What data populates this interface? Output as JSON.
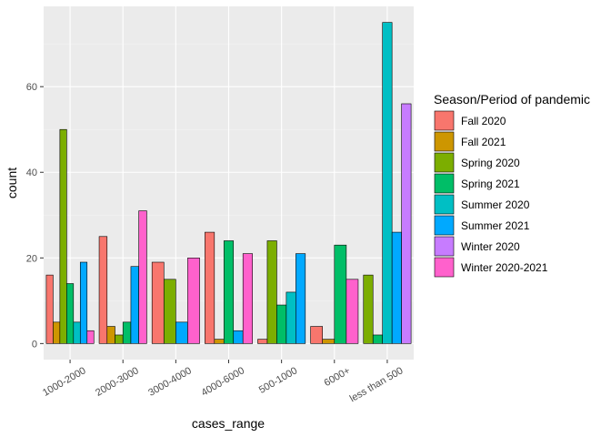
{
  "chart_data": {
    "type": "bar",
    "xlabel": "cases_range",
    "ylabel": "count",
    "ylim": [
      -3.75,
      78.75
    ],
    "y_ticks": [
      0,
      20,
      40,
      60
    ],
    "categories": [
      "1000-2000",
      "2000-3000",
      "3000-4000",
      "4000-6000",
      "500-1000",
      "6000+",
      "less than 500"
    ],
    "legend_title": "Season/Period of pandemic",
    "legend_position": "right",
    "grid": true,
    "series": [
      {
        "name": "Fall 2020",
        "color": "#F8766D",
        "values": [
          16,
          25,
          19,
          26,
          1,
          4,
          0
        ]
      },
      {
        "name": "Fall 2021",
        "color": "#CD9600",
        "values": [
          5,
          4,
          0,
          1,
          0,
          1,
          0
        ]
      },
      {
        "name": "Spring 2020",
        "color": "#7CAE00",
        "values": [
          50,
          2,
          15,
          0,
          24,
          0,
          16
        ]
      },
      {
        "name": "Spring 2021",
        "color": "#00BE67",
        "values": [
          14,
          5,
          0,
          24,
          9,
          23,
          2
        ]
      },
      {
        "name": "Summer 2020",
        "color": "#00BFC4",
        "values": [
          5,
          0,
          0,
          0,
          12,
          0,
          75
        ]
      },
      {
        "name": "Summer 2021",
        "color": "#00A9FF",
        "values": [
          19,
          18,
          5,
          3,
          21,
          0,
          26
        ]
      },
      {
        "name": "Winter 2020",
        "color": "#C77CFF",
        "values": [
          0,
          0,
          0,
          0,
          0,
          0,
          56
        ]
      },
      {
        "name": "Winter 2020-2021",
        "color": "#FF61CC",
        "values": [
          3,
          31,
          20,
          21,
          0,
          15,
          0
        ]
      }
    ]
  }
}
